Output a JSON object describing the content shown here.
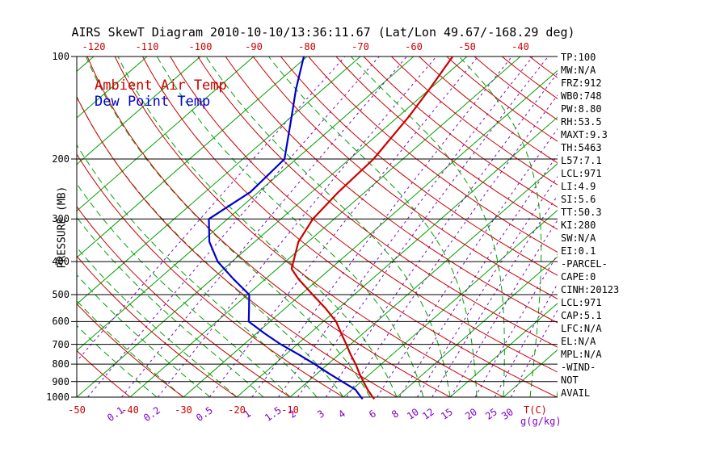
{
  "title": "AIRS SkewT Diagram 2010-10-10/13:36:11.67 (Lat/Lon 49.67/-168.29 deg)",
  "legend": {
    "air_temp": "Ambient Air Temp",
    "dew_point": "Dew Point Temp"
  },
  "axes": {
    "y_label": "PRESSURE (MB)",
    "pressure_ticks": [
      100,
      200,
      300,
      400,
      500,
      600,
      700,
      800,
      900,
      1000
    ],
    "top_temp_ticks": [
      -120,
      -110,
      -100,
      -90,
      -80,
      -70,
      -60,
      -50,
      -40
    ],
    "bottom_temp_ticks": [
      -50,
      -40,
      -30,
      -20,
      -10
    ],
    "bottom_temp_unit": "T(C)",
    "mixing_ratio_ticks": [
      0.1,
      0.2,
      0.5,
      1,
      1.5,
      2,
      3,
      4,
      6,
      8,
      10,
      12,
      15,
      20,
      25,
      30
    ],
    "mixing_ratio_unit": "g(g/kg)"
  },
  "colors": {
    "temp_red": "#cc0000",
    "dew_blue": "#0000cc",
    "isotherm_green": "#00a000",
    "moist_green": "#00a000",
    "mixing_purple": "#8000c8",
    "axis_black": "#000000"
  },
  "side_panel": [
    "TP:100",
    "MW:N/A",
    "FRZ:912",
    "WB0:748",
    "PW:8.80",
    "RH:53.5",
    "MAXT:9.3",
    "TH:5463",
    "L57:7.1",
    "LCL:971",
    "LI:4.9",
    "SI:5.6",
    "TT:50.3",
    "KI:280",
    "SW:N/A",
    "EI:0.1",
    "-PARCEL-",
    "CAPE:0",
    "CINH:20123",
    "LCL:971",
    "CAP:5.1",
    "LFC:N/A",
    "EL:N/A",
    "MPL:N/A",
    "-WIND-",
    "NOT",
    "AVAIL"
  ],
  "chart_data": {
    "type": "line",
    "variant": "skew-t-log-p",
    "title": "AIRS SkewT Diagram 2010-10-10/13:36:11.67 (Lat/Lon 49.67/-168.29 deg)",
    "xlabel": "T(C)",
    "ylabel": "PRESSURE (MB)",
    "y_scale": "log",
    "y_range_hpa": [
      100,
      1050
    ],
    "top_axis_ticks_c": [
      -120,
      -110,
      -100,
      -90,
      -80,
      -70,
      -60,
      -50,
      -40
    ],
    "bottom_axis_ticks_c": [
      -50,
      -40,
      -30,
      -20,
      -10
    ],
    "series": [
      {
        "name": "Ambient Air Temp",
        "color": "#cc0000",
        "units": [
          "hPa",
          "degC"
        ],
        "points": [
          [
            1013,
            6.2
          ],
          [
            1000,
            5.5
          ],
          [
            950,
            2.9
          ],
          [
            900,
            0.4
          ],
          [
            850,
            -2.2
          ],
          [
            800,
            -4.8
          ],
          [
            750,
            -7.8
          ],
          [
            700,
            -10.8
          ],
          [
            650,
            -14.1
          ],
          [
            600,
            -17.6
          ],
          [
            550,
            -22.3
          ],
          [
            500,
            -27.8
          ],
          [
            450,
            -33.8
          ],
          [
            420,
            -37.3
          ],
          [
            400,
            -38.5
          ],
          [
            350,
            -41.8
          ],
          [
            300,
            -44.0
          ],
          [
            250,
            -45.0
          ],
          [
            200,
            -45.5
          ],
          [
            150,
            -48.0
          ],
          [
            125,
            -50.0
          ],
          [
            100,
            -52.7
          ]
        ]
      },
      {
        "name": "Dew Point Temp",
        "color": "#0000cc",
        "units": [
          "hPa",
          "degC"
        ],
        "points": [
          [
            1013,
            4.0
          ],
          [
            1000,
            3.3
          ],
          [
            950,
            0.6
          ],
          [
            900,
            -3.6
          ],
          [
            850,
            -8.0
          ],
          [
            800,
            -12.5
          ],
          [
            750,
            -17.5
          ],
          [
            700,
            -23.1
          ],
          [
            650,
            -28.5
          ],
          [
            600,
            -34.0
          ],
          [
            550,
            -36.7
          ],
          [
            500,
            -39.7
          ],
          [
            450,
            -46.0
          ],
          [
            400,
            -52.7
          ],
          [
            350,
            -58.5
          ],
          [
            300,
            -63.5
          ],
          [
            250,
            -61.5
          ],
          [
            200,
            -62.2
          ],
          [
            150,
            -70.0
          ],
          [
            125,
            -75.0
          ],
          [
            100,
            -80.6
          ]
        ]
      }
    ],
    "background": {
      "isotherms_c": {
        "min": -120,
        "max": 30,
        "step": 10
      },
      "dry_adiabats_c": {
        "min": -50,
        "max": 190,
        "step": 10
      },
      "moist_adiabats_c": {
        "min": -35,
        "max": 40,
        "step": 5
      },
      "mixing_ratio_g_kg": [
        0.02,
        0.05,
        0.1,
        0.2,
        0.5,
        1,
        1.5,
        2,
        3,
        4,
        6,
        8,
        10,
        12,
        15,
        20,
        25,
        30
      ]
    }
  }
}
